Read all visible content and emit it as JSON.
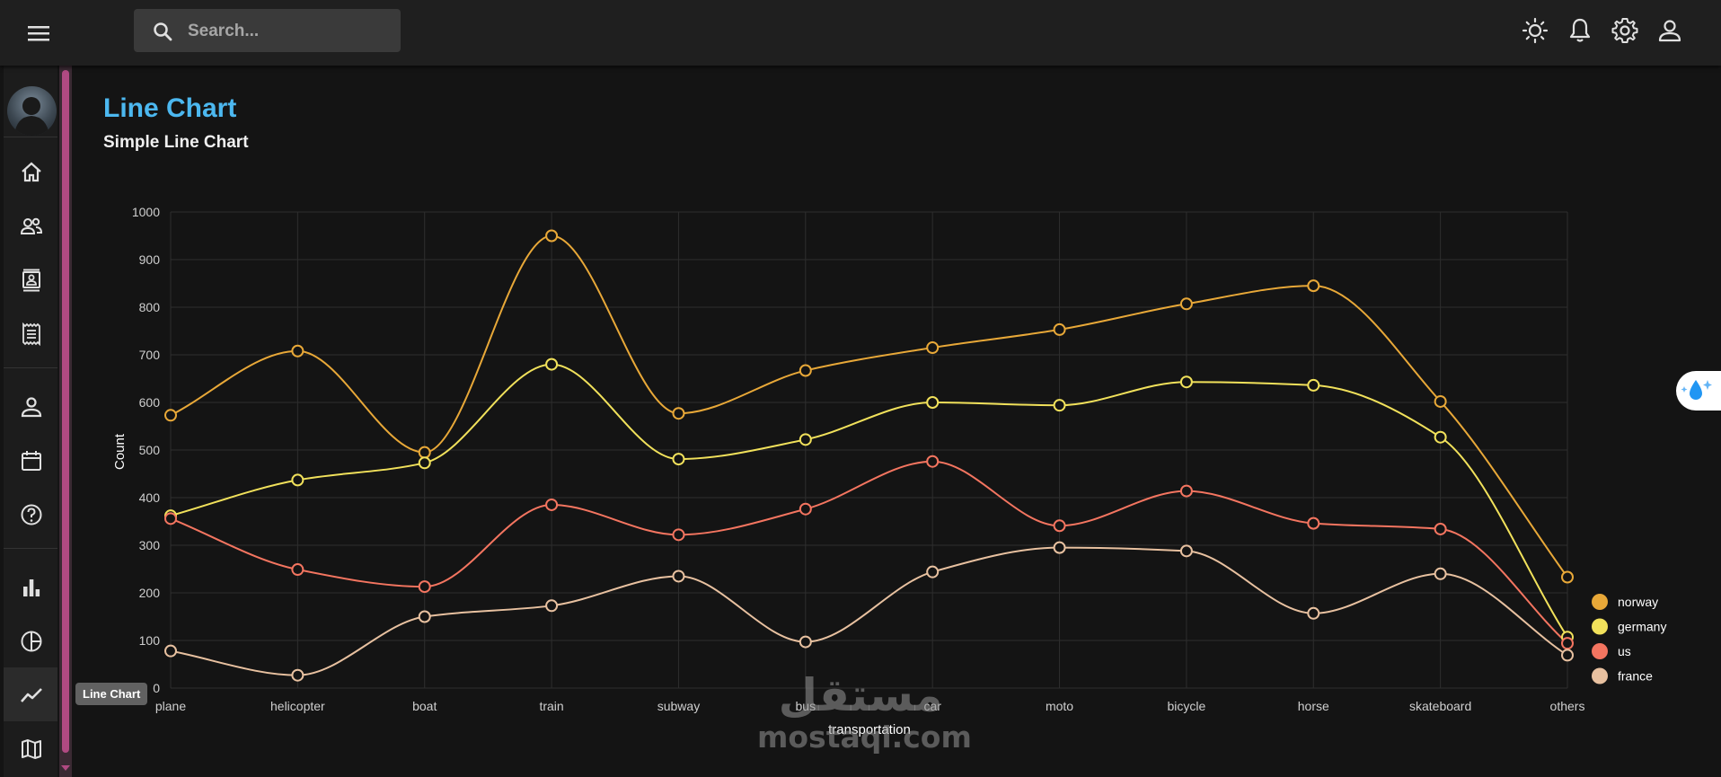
{
  "header": {
    "search_placeholder": "Search..."
  },
  "sidebar": {
    "items": [
      {
        "icon": "home-icon"
      },
      {
        "icon": "team-icon"
      },
      {
        "icon": "contacts-icon"
      },
      {
        "icon": "invoices-icon"
      },
      {
        "icon": "profile-icon"
      },
      {
        "icon": "calendar-icon"
      },
      {
        "icon": "faq-icon"
      },
      {
        "icon": "bar-chart-icon"
      },
      {
        "icon": "pie-chart-icon"
      },
      {
        "icon": "line-chart-icon",
        "active": true
      },
      {
        "icon": "geography-icon"
      }
    ],
    "tooltip": "Line Chart"
  },
  "page": {
    "title": "Line Chart",
    "subtitle": "Simple Line Chart"
  },
  "watermark": {
    "arabic": "مستقل",
    "latin": "mostaql.com"
  },
  "colors": {
    "accent": "#4cb8f0",
    "norway": "#e8a838",
    "germany": "#f1e15b",
    "us": "#f47560",
    "france": "#e8c1a0",
    "sidebar_scroll": "#b04a82"
  },
  "chart_data": {
    "type": "line",
    "xlabel": "transportation",
    "ylabel": "Count",
    "ylim": [
      0,
      1000
    ],
    "yticks": [
      0,
      100,
      200,
      300,
      400,
      500,
      600,
      700,
      800,
      900,
      1000
    ],
    "grid": true,
    "curve": "smooth",
    "legend_position": "bottom-right",
    "categories": [
      "plane",
      "helicopter",
      "boat",
      "train",
      "subway",
      "bus",
      "car",
      "moto",
      "bicycle",
      "horse",
      "skateboard",
      "others"
    ],
    "series": [
      {
        "name": "norway",
        "color": "#e8a838",
        "values": [
          573,
          708,
          495,
          950,
          577,
          667,
          715,
          753,
          807,
          845,
          602,
          233
        ]
      },
      {
        "name": "germany",
        "color": "#f1e15b",
        "values": [
          362,
          437,
          473,
          680,
          481,
          522,
          600,
          594,
          643,
          636,
          527,
          107
        ]
      },
      {
        "name": "us",
        "color": "#f47560",
        "values": [
          356,
          249,
          213,
          385,
          322,
          376,
          476,
          341,
          414,
          346,
          334,
          94
        ]
      },
      {
        "name": "france",
        "color": "#e8c1a0",
        "values": [
          78,
          27,
          150,
          173,
          235,
          97,
          244,
          295,
          288,
          157,
          240,
          69
        ]
      }
    ]
  }
}
